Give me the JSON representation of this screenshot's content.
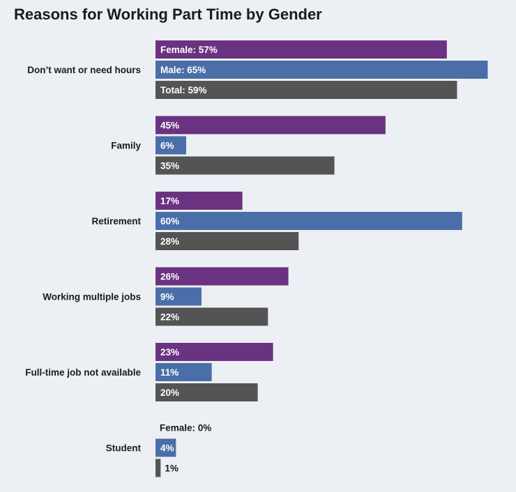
{
  "chart_data": {
    "type": "bar",
    "orientation": "horizontal",
    "title": "Reasons for Working Part Time by Gender",
    "xlabel": "",
    "ylabel": "",
    "xlim": [
      0,
      67
    ],
    "grid": false,
    "categories": [
      "Don’t want or need hours",
      "Family",
      "Retirement",
      "Working multiple jobs",
      "Full-time job not available",
      "Student"
    ],
    "series": [
      {
        "name": "Female",
        "color": "#6a3280",
        "values": [
          57,
          45,
          17,
          26,
          23,
          0
        ],
        "labels": [
          "Female: 57%",
          "45%",
          "17%",
          "26%",
          "23%",
          "Female: 0%"
        ]
      },
      {
        "name": "Male",
        "color": "#4a6ea8",
        "values": [
          65,
          6,
          60,
          9,
          11,
          4
        ],
        "labels": [
          "Male: 65%",
          "6%",
          "60%",
          "9%",
          "11%",
          "4%"
        ]
      },
      {
        "name": "Total",
        "color": "#545454",
        "values": [
          59,
          35,
          28,
          22,
          20,
          1
        ],
        "labels": [
          "Total: 59%",
          "35%",
          "28%",
          "22%",
          "20%",
          "1%"
        ]
      }
    ]
  }
}
